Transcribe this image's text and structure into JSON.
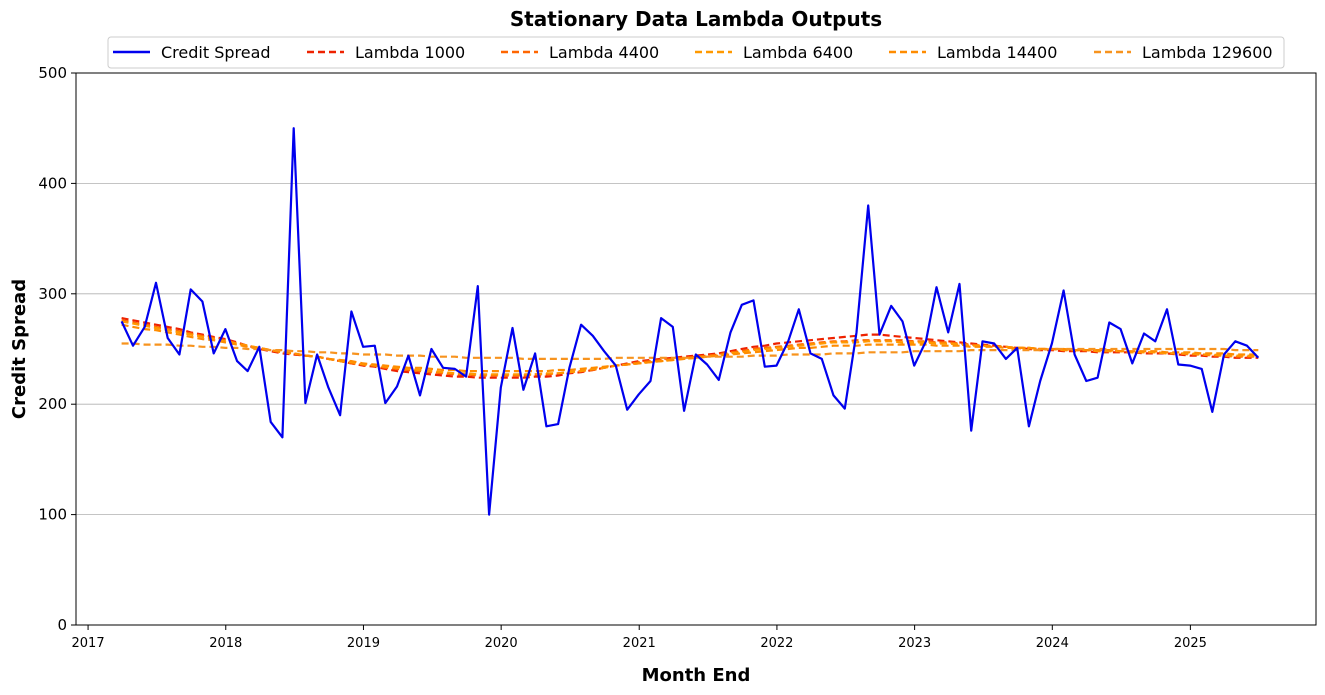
{
  "chart_data": {
    "type": "line",
    "title": "Stationary Data Lambda Outputs",
    "xlabel": "Month End",
    "ylabel": "Credit Spread",
    "xlim": [
      "2016-11-30",
      "2025-11-30"
    ],
    "ylim": [
      0,
      500
    ],
    "yticks": [
      0,
      100,
      200,
      300,
      400,
      500
    ],
    "xticks": [
      "2017",
      "2018",
      "2019",
      "2020",
      "2021",
      "2022",
      "2023",
      "2024",
      "2025"
    ],
    "grid": "horizontal",
    "legend_position": "top",
    "x": [
      "2017-03-31",
      "2017-04-30",
      "2017-05-31",
      "2017-06-30",
      "2017-07-31",
      "2017-08-31",
      "2017-09-30",
      "2017-10-31",
      "2017-11-30",
      "2017-12-31",
      "2018-01-31",
      "2018-02-28",
      "2018-03-31",
      "2018-04-30",
      "2018-05-31",
      "2018-06-30",
      "2018-07-31",
      "2018-08-31",
      "2018-09-30",
      "2018-10-31",
      "2018-11-30",
      "2018-12-31",
      "2019-01-31",
      "2019-02-28",
      "2019-03-31",
      "2019-04-30",
      "2019-05-31",
      "2019-06-30",
      "2019-07-31",
      "2019-08-31",
      "2019-09-30",
      "2019-10-31",
      "2019-11-30",
      "2019-12-31",
      "2020-01-31",
      "2020-02-29",
      "2020-03-31",
      "2020-04-30",
      "2020-05-31",
      "2020-06-30",
      "2020-07-31",
      "2020-08-31",
      "2020-09-30",
      "2020-10-31",
      "2020-11-30",
      "2020-12-31",
      "2021-01-31",
      "2021-02-28",
      "2021-03-31",
      "2021-04-30",
      "2021-05-31",
      "2021-06-30",
      "2021-07-31",
      "2021-08-31",
      "2021-09-30",
      "2021-10-31",
      "2021-11-30",
      "2021-12-31",
      "2022-01-31",
      "2022-02-28",
      "2022-03-31",
      "2022-04-30",
      "2022-05-31",
      "2022-06-30",
      "2022-07-31",
      "2022-08-31",
      "2022-09-30",
      "2022-10-31",
      "2022-11-30",
      "2022-12-31",
      "2023-01-31",
      "2023-02-28",
      "2023-03-31",
      "2023-04-30",
      "2023-05-31",
      "2023-06-30",
      "2023-07-31",
      "2023-08-31",
      "2023-09-30",
      "2023-10-31",
      "2023-11-30",
      "2023-12-31",
      "2024-01-31",
      "2024-02-29",
      "2024-03-31",
      "2024-04-30",
      "2024-05-31",
      "2024-06-30",
      "2024-07-31",
      "2024-08-31",
      "2024-09-30",
      "2024-10-31",
      "2024-11-30",
      "2024-12-31",
      "2025-01-31",
      "2025-02-28",
      "2025-03-31",
      "2025-04-30",
      "2025-05-31",
      "2025-06-30"
    ],
    "series": [
      {
        "name": "Credit Spread",
        "color": "#0000ee",
        "style": "solid",
        "values": [
          275,
          253,
          270,
          310,
          260,
          245,
          304,
          293,
          246,
          268,
          239,
          230,
          252,
          184,
          170,
          450,
          201,
          245,
          215,
          190,
          284,
          252,
          253,
          201,
          216,
          244,
          208,
          250,
          233,
          232,
          225,
          307,
          100,
          215,
          269,
          213,
          246,
          180,
          182,
          233,
          272,
          262,
          248,
          235,
          195,
          209,
          221,
          278,
          270,
          194,
          245,
          236,
          222,
          265,
          290,
          294,
          234,
          235,
          257,
          286,
          246,
          241,
          208,
          196,
          265,
          380,
          263,
          289,
          275,
          235,
          257,
          306,
          265,
          309,
          176,
          257,
          255,
          241,
          251,
          180,
          221,
          255,
          303,
          245,
          221,
          224,
          274,
          268,
          237,
          264,
          257,
          286,
          236,
          235,
          232,
          193,
          245,
          257,
          253,
          242
        ]
      },
      {
        "name": "Lambda 1000",
        "color": "#ee2200",
        "style": "dashed",
        "values": [
          278,
          276,
          274,
          272,
          270,
          268,
          265,
          263,
          261,
          259,
          256,
          253,
          250,
          248,
          246,
          245,
          244,
          243,
          241,
          239,
          237,
          235,
          234,
          232,
          230,
          229,
          228,
          227,
          226,
          225,
          225,
          224,
          224,
          224,
          224,
          224,
          225,
          225,
          226,
          228,
          229,
          231,
          233,
          235,
          237,
          239,
          240,
          241,
          242,
          243,
          244,
          245,
          246,
          248,
          250,
          252,
          253,
          255,
          256,
          257,
          258,
          259,
          260,
          261,
          262,
          263,
          263,
          262,
          261,
          260,
          259,
          258,
          257,
          256,
          255,
          254,
          253,
          252,
          251,
          250,
          249,
          249,
          248,
          248,
          248,
          247,
          247,
          247,
          247,
          246,
          246,
          246,
          245,
          244,
          244,
          243,
          243,
          242,
          242,
          242
        ]
      },
      {
        "name": "Lambda 4400",
        "color": "#ff6600",
        "style": "dashed",
        "values": [
          276,
          274,
          272,
          270,
          268,
          266,
          264,
          262,
          260,
          258,
          255,
          253,
          251,
          249,
          247,
          246,
          244,
          243,
          241,
          239,
          237,
          236,
          235,
          233,
          232,
          231,
          230,
          229,
          228,
          227,
          227,
          226,
          226,
          226,
          226,
          226,
          227,
          227,
          228,
          229,
          230,
          231,
          233,
          235,
          236,
          238,
          239,
          240,
          241,
          242,
          243,
          244,
          245,
          247,
          248,
          250,
          251,
          252,
          253,
          254,
          255,
          256,
          257,
          257,
          258,
          258,
          258,
          258,
          258,
          257,
          257,
          256,
          256,
          255,
          254,
          253,
          253,
          252,
          251,
          251,
          250,
          250,
          249,
          249,
          249,
          248,
          248,
          248,
          247,
          247,
          247,
          246,
          246,
          245,
          245,
          244,
          244,
          243,
          243,
          243
        ]
      },
      {
        "name": "Lambda 6400",
        "color": "#ff9900",
        "style": "dashed",
        "values": [
          275,
          273,
          271,
          269,
          267,
          265,
          263,
          261,
          259,
          257,
          255,
          253,
          251,
          249,
          247,
          246,
          244,
          243,
          241,
          239,
          238,
          236,
          235,
          234,
          233,
          232,
          231,
          230,
          229,
          228,
          228,
          227,
          227,
          227,
          227,
          227,
          227,
          228,
          228,
          229,
          230,
          232,
          233,
          235,
          236,
          237,
          238,
          239,
          240,
          241,
          242,
          243,
          244,
          246,
          247,
          249,
          250,
          251,
          252,
          253,
          254,
          255,
          256,
          256,
          256,
          257,
          257,
          257,
          256,
          256,
          256,
          255,
          255,
          254,
          253,
          253,
          252,
          252,
          251,
          251,
          250,
          250,
          249,
          249,
          249,
          248,
          248,
          248,
          247,
          247,
          247,
          246,
          246,
          246,
          245,
          245,
          244,
          244,
          244,
          243
        ]
      },
      {
        "name": "Lambda 14400",
        "color": "#ff8c00",
        "style": "dashed",
        "values": [
          272,
          270,
          268,
          267,
          265,
          263,
          261,
          259,
          258,
          256,
          254,
          252,
          250,
          249,
          247,
          246,
          244,
          243,
          241,
          240,
          239,
          237,
          236,
          235,
          234,
          233,
          233,
          232,
          231,
          231,
          230,
          230,
          230,
          230,
          230,
          230,
          230,
          230,
          231,
          231,
          232,
          233,
          234,
          235,
          236,
          237,
          238,
          239,
          240,
          241,
          242,
          243,
          244,
          245,
          246,
          247,
          248,
          249,
          250,
          251,
          251,
          252,
          253,
          253,
          253,
          254,
          254,
          254,
          254,
          254,
          254,
          253,
          253,
          253,
          252,
          252,
          252,
          251,
          251,
          251,
          250,
          250,
          250,
          249,
          249,
          249,
          249,
          248,
          248,
          248,
          248,
          247,
          247,
          247,
          246,
          246,
          246,
          245,
          245,
          245
        ]
      },
      {
        "name": "Lambda 129600",
        "color": "#f7931e",
        "style": "dashed",
        "values": [
          255,
          255,
          254,
          254,
          254,
          253,
          253,
          252,
          252,
          251,
          251,
          250,
          250,
          249,
          249,
          248,
          248,
          247,
          247,
          246,
          246,
          245,
          245,
          245,
          244,
          244,
          244,
          243,
          243,
          243,
          242,
          242,
          242,
          242,
          242,
          241,
          241,
          241,
          241,
          241,
          241,
          241,
          241,
          242,
          242,
          242,
          242,
          242,
          242,
          242,
          242,
          243,
          243,
          243,
          243,
          244,
          244,
          244,
          245,
          245,
          245,
          245,
          246,
          246,
          246,
          247,
          247,
          247,
          247,
          248,
          248,
          248,
          248,
          248,
          249,
          249,
          249,
          249,
          249,
          249,
          249,
          250,
          250,
          250,
          250,
          250,
          250,
          250,
          250,
          250,
          250,
          250,
          250,
          250,
          250,
          250,
          250,
          249,
          249,
          249
        ]
      }
    ]
  }
}
